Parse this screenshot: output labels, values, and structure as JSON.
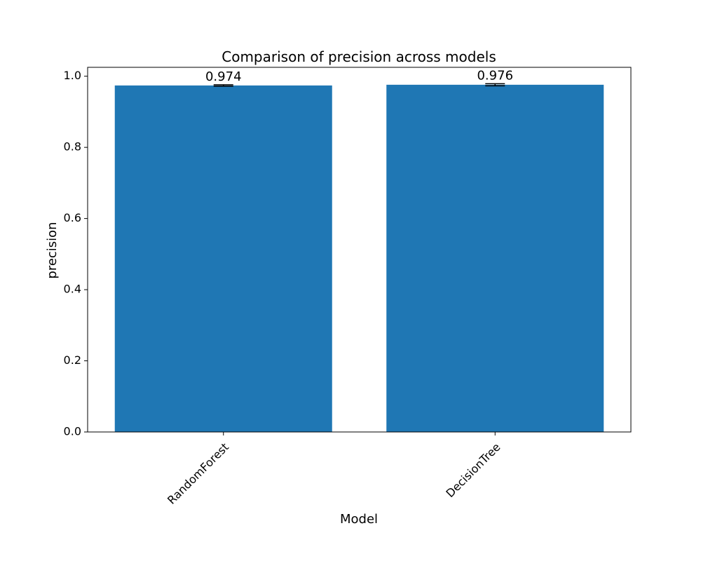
{
  "chart_data": {
    "type": "bar",
    "title": "Comparison of precision across models",
    "xlabel": "Model",
    "ylabel": "precision",
    "categories": [
      "RandomForest",
      "DecisionTree"
    ],
    "values": [
      0.974,
      0.976
    ],
    "value_labels": [
      "0.974",
      "0.976"
    ],
    "error": [
      0.002,
      0.003
    ],
    "ylim": [
      0,
      1.025
    ],
    "yticks": [
      0.0,
      0.2,
      0.4,
      0.6,
      0.8,
      1.0
    ],
    "ytick_labels": [
      "0.0",
      "0.2",
      "0.4",
      "0.6",
      "0.8",
      "1.0"
    ],
    "grid": false,
    "legend": "none",
    "bar_color": "#1f77b4",
    "error_color": "#000000"
  }
}
